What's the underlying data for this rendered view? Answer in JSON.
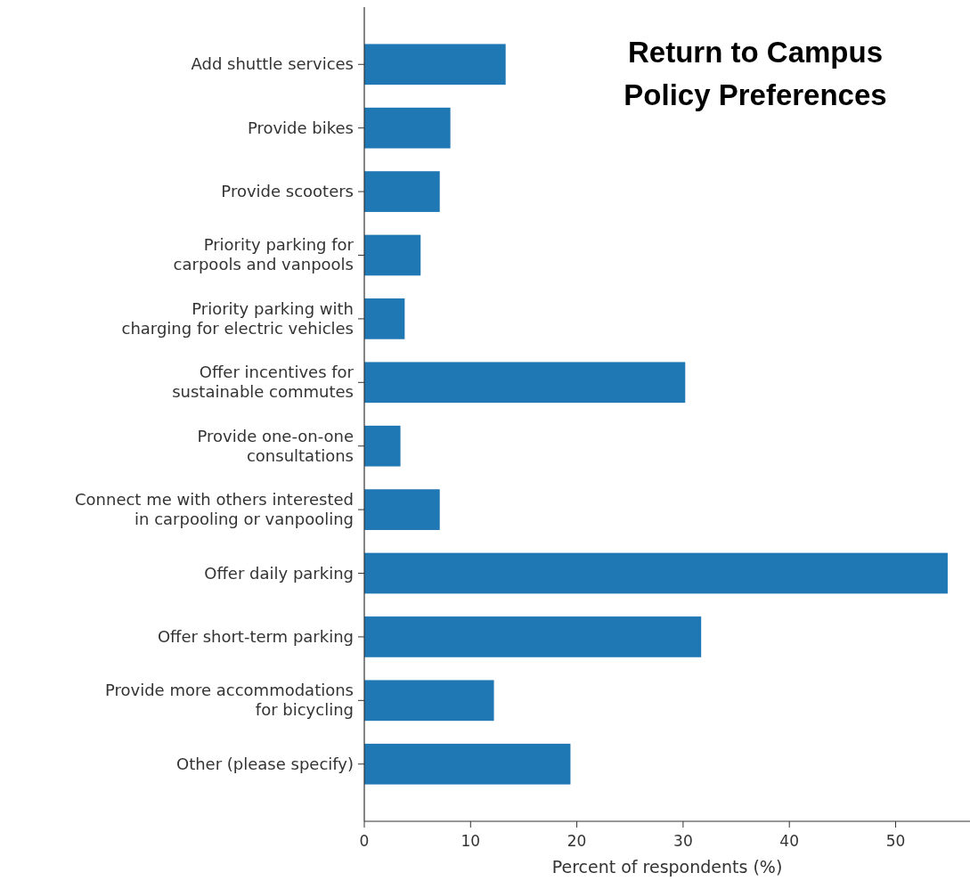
{
  "chart_data": {
    "type": "bar",
    "orientation": "horizontal",
    "title": "Return to Campus\nPolicy Preferences",
    "xlabel": "Percent of respondents (%)",
    "categories": [
      "Add shuttle services",
      "Provide bikes",
      "Provide scooters",
      "Priority parking for\ncarpools and vanpools",
      "Priority parking with\ncharging for electric vehicles",
      "Offer incentives for\nsustainable commutes",
      "Provide one-on-one\nconsultations",
      "Connect me with others interested\nin carpooling or vanpooling",
      "Offer daily parking",
      "Offer short-term parking",
      "Provide more accommodations\nfor bicycling",
      "Other (please specify)"
    ],
    "values": [
      13.3,
      8.1,
      7.1,
      5.3,
      3.8,
      30.2,
      3.4,
      7.1,
      54.9,
      31.7,
      12.2,
      19.4
    ],
    "color": "#1f77b4",
    "xlim": [
      0,
      57
    ],
    "xticks": [
      0,
      10,
      20,
      30,
      40,
      50
    ],
    "grid": false
  }
}
